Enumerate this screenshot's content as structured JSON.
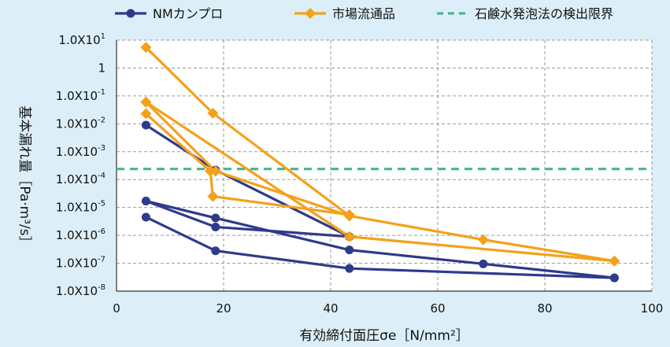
{
  "chart_data": {
    "type": "line",
    "xlabel": "有効締付面圧σe［N/mm²］",
    "ylabel": "基本漏れ量［Pa·m³/s］",
    "xlim": [
      0,
      100
    ],
    "ylim_log10": [
      -8,
      1
    ],
    "y_scale": "log",
    "grid": "dashed",
    "legend_position": "top",
    "x_ticks": [
      "0",
      "20",
      "40",
      "60",
      "80",
      "100"
    ],
    "y_ticks": [
      {
        "base": "1.0X10",
        "exp": "1",
        "log": 1
      },
      {
        "base": "1",
        "exp": "",
        "log": 0
      },
      {
        "base": "1.0X10",
        "exp": "-1",
        "log": -1
      },
      {
        "base": "1.0X10",
        "exp": "-2",
        "log": -2
      },
      {
        "base": "1.0X10",
        "exp": "-3",
        "log": -3
      },
      {
        "base": "1.0X10",
        "exp": "-4",
        "log": -4
      },
      {
        "base": "1.0X10",
        "exp": "-5",
        "log": -5
      },
      {
        "base": "1.0X10",
        "exp": "-6",
        "log": -6
      },
      {
        "base": "1.0X10",
        "exp": "-7",
        "log": -7
      },
      {
        "base": "1.0X10",
        "exp": "-8",
        "log": -8
      }
    ],
    "legend": [
      {
        "label": "NMカンプロ",
        "color": "#2e3a8c",
        "style": "line-marker",
        "marker": "circle"
      },
      {
        "label": "市場流通品",
        "color": "#f5a01a",
        "style": "line-marker",
        "marker": "diamond"
      },
      {
        "label": "石鹸水発泡法の検出限界",
        "color": "#3bb58a",
        "style": "dashed"
      }
    ],
    "series": [
      {
        "group": "NMカンプロ",
        "color": "#2e3a8c",
        "marker": "circle",
        "points": [
          [
            5.5,
            0.009
          ],
          [
            18.5,
            0.00022
          ],
          [
            43.5,
            9e-07
          ]
        ]
      },
      {
        "group": "NMカンプロ",
        "color": "#2e3a8c",
        "marker": "circle",
        "points": [
          [
            5.5,
            1.7e-05
          ],
          [
            18.5,
            2e-06
          ],
          [
            43.5,
            9e-07
          ]
        ]
      },
      {
        "group": "NMカンプロ",
        "color": "#2e3a8c",
        "marker": "circle",
        "points": [
          [
            5.5,
            1.7e-05
          ],
          [
            18.5,
            4.2e-06
          ],
          [
            43.5,
            3e-07
          ],
          [
            68.5,
            9.5e-08
          ],
          [
            93,
            3e-08
          ]
        ]
      },
      {
        "group": "NMカンプロ",
        "color": "#2e3a8c",
        "marker": "circle",
        "points": [
          [
            5.5,
            4.5e-06
          ],
          [
            18.5,
            2.8e-07
          ],
          [
            43.5,
            6.5e-08
          ],
          [
            93,
            3e-08
          ]
        ]
      },
      {
        "group": "市場流通品",
        "color": "#f5a01a",
        "marker": "diamond",
        "points": [
          [
            5.5,
            5.5
          ],
          [
            18,
            0.024
          ],
          [
            43.5,
            5e-06
          ],
          [
            68.5,
            7e-07
          ],
          [
            93,
            1.2e-07
          ]
        ]
      },
      {
        "group": "市場流通品",
        "color": "#f5a01a",
        "marker": "diamond",
        "points": [
          [
            5.5,
            0.06
          ],
          [
            18.5,
            0.0002
          ],
          [
            43.5,
            5e-06
          ]
        ]
      },
      {
        "group": "市場流通品",
        "color": "#f5a01a",
        "marker": "diamond",
        "points": [
          [
            5.5,
            0.06
          ],
          [
            43.5,
            9e-07
          ],
          [
            93,
            1.2e-07
          ]
        ]
      },
      {
        "group": "市場流通品",
        "color": "#f5a01a",
        "marker": "diamond",
        "points": [
          [
            5.5,
            0.023
          ],
          [
            17.5,
            0.0002
          ],
          [
            18,
            2.5e-05
          ],
          [
            43.5,
            5.5e-06
          ]
        ]
      }
    ],
    "reference_line": {
      "label": "石鹸水発泡法の検出限界",
      "color": "#3bb58a",
      "y": 0.00024
    }
  }
}
